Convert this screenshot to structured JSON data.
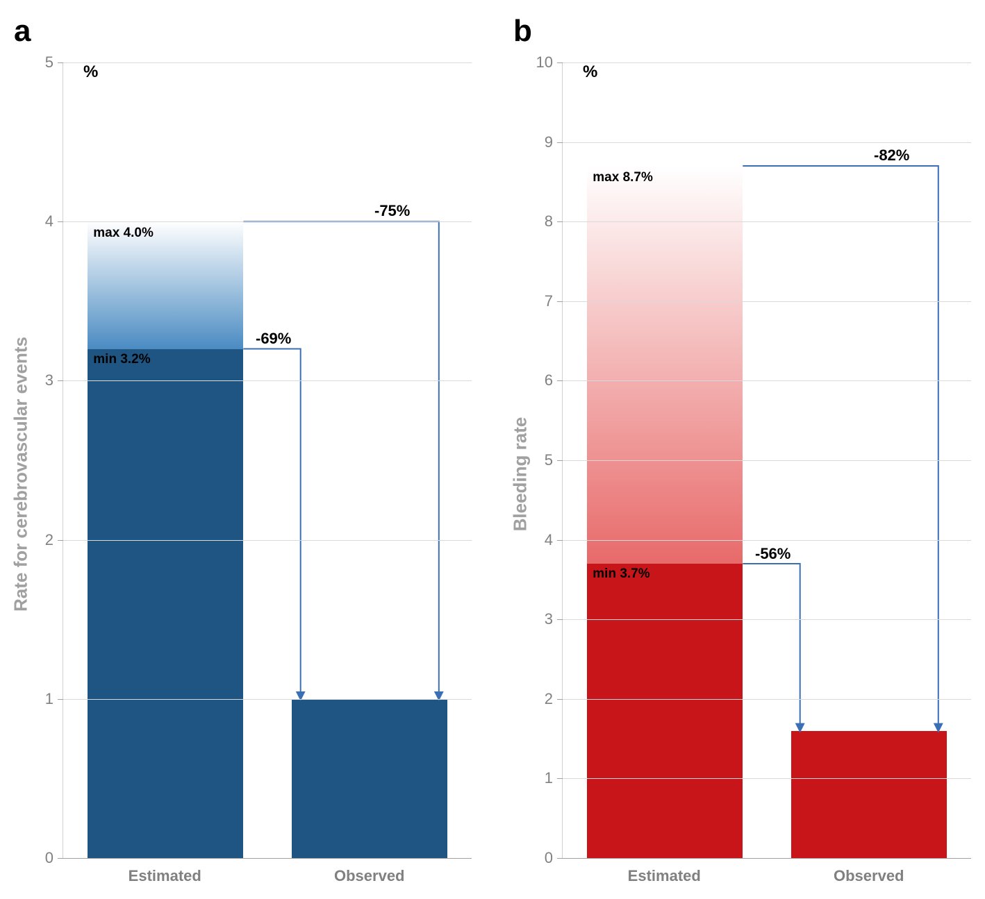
{
  "panel_a": {
    "label": "a",
    "y_unit": "%",
    "y_axis_label": "Rate for cerebrovascular events",
    "ymin": 0,
    "ymax": 5,
    "ytick_step": 1,
    "grid_color": "#d9d9d9",
    "axis_color": "#a0a0a0",
    "tick_label_color": "#808080",
    "categories": [
      "Estimated",
      "Observed"
    ],
    "estimated": {
      "min": 3.2,
      "max": 4.0,
      "min_label": "min 3.2%",
      "max_label": "max 4.0%",
      "solid_color": "#1f5582",
      "gradient_top": "#ffffff",
      "gradient_bottom": "#4a8bc2"
    },
    "observed": {
      "value": 1.0,
      "color": "#1f5582"
    },
    "reductions": {
      "from_max": "-75%",
      "from_min": "-69%"
    },
    "arrow_color": "#3b6fb5",
    "label_fontsize": 22,
    "annot_fontsize": 19,
    "pct_fontsize": 22
  },
  "panel_b": {
    "label": "b",
    "y_unit": "%",
    "y_axis_label": "Bleeding rate",
    "ymin": 0,
    "ymax": 10,
    "ytick_step": 1,
    "grid_color": "#d9d9d9",
    "axis_color": "#a0a0a0",
    "tick_label_color": "#808080",
    "categories": [
      "Estimated",
      "Observed"
    ],
    "estimated": {
      "min": 3.7,
      "max": 8.7,
      "min_label": "min 3.7%",
      "max_label": "max 8.7%",
      "solid_color": "#c8151a",
      "gradient_top": "#ffffff",
      "gradient_bottom": "#e86a6a"
    },
    "observed": {
      "value": 1.6,
      "color": "#c8151a"
    },
    "reductions": {
      "from_max": "-82%",
      "from_min": "-56%"
    },
    "arrow_color": "#3b6fb5",
    "label_fontsize": 22,
    "annot_fontsize": 19,
    "pct_fontsize": 22
  }
}
